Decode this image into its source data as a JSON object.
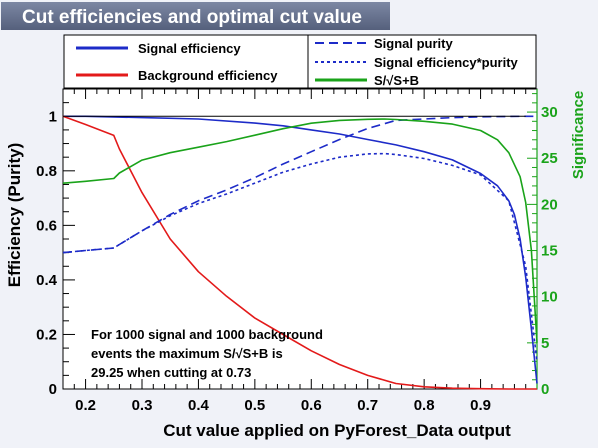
{
  "chart_data": {
    "type": "line",
    "title": "Cut efficiencies and optimal cut value",
    "xlabel": "Cut value applied on PyForest_Data output",
    "ylabel": "Efficiency (Purity)",
    "y2label": "Significance",
    "xlim": [
      0.16,
      1.0
    ],
    "ylim": [
      0,
      1.1
    ],
    "y2lim": [
      0,
      32.5
    ],
    "xticks": [
      "0.2",
      "0.3",
      "0.4",
      "0.5",
      "0.6",
      "0.7",
      "0.8",
      "0.9"
    ],
    "yticks": [
      "0",
      "0.2",
      "0.4",
      "0.6",
      "0.8",
      "1"
    ],
    "y2ticks": [
      "0",
      "5",
      "10",
      "15",
      "20",
      "25",
      "30"
    ],
    "legend": [
      {
        "label": "Signal efficiency",
        "style": "solid",
        "color": "#1d2bc8"
      },
      {
        "label": "Background efficiency",
        "style": "solid",
        "color": "#e31a1a"
      },
      {
        "label": "Signal purity",
        "style": "dashed",
        "color": "#1d2bc8"
      },
      {
        "label": "Signal efficiency*purity",
        "style": "dotted",
        "color": "#1d2bc8"
      },
      {
        "label": "S/√S+B",
        "style": "solid",
        "color": "#1aa31a"
      }
    ],
    "annotation": [
      "For 1000 signal and 1000 background",
      "events the maximum S/√S+B is",
      "29.25 when cutting at  0.73"
    ],
    "series": [
      {
        "name": "Signal efficiency",
        "axis": "left",
        "color": "#1d2bc8",
        "style": "solid",
        "x": [
          0.16,
          0.2,
          0.3,
          0.4,
          0.5,
          0.55,
          0.6,
          0.65,
          0.7,
          0.75,
          0.8,
          0.85,
          0.9,
          0.93,
          0.95,
          0.96,
          0.97,
          0.98,
          0.99,
          0.995,
          1.0
        ],
        "y": [
          1.0,
          1.0,
          0.995,
          0.99,
          0.975,
          0.965,
          0.95,
          0.935,
          0.915,
          0.895,
          0.87,
          0.84,
          0.79,
          0.745,
          0.69,
          0.64,
          0.55,
          0.41,
          0.22,
          0.12,
          0.02
        ]
      },
      {
        "name": "Background efficiency",
        "axis": "left",
        "color": "#e31a1a",
        "style": "solid",
        "x": [
          0.16,
          0.2,
          0.25,
          0.26,
          0.3,
          0.35,
          0.4,
          0.45,
          0.5,
          0.55,
          0.6,
          0.65,
          0.7,
          0.75,
          0.8,
          0.85,
          0.9,
          0.95,
          1.0
        ],
        "y": [
          1.0,
          0.97,
          0.93,
          0.88,
          0.72,
          0.55,
          0.43,
          0.34,
          0.26,
          0.2,
          0.14,
          0.09,
          0.05,
          0.02,
          0.008,
          0.003,
          0.001,
          0.0,
          0.0
        ]
      },
      {
        "name": "Signal purity",
        "axis": "left",
        "color": "#1d2bc8",
        "style": "dashed",
        "x": [
          0.16,
          0.2,
          0.25,
          0.26,
          0.3,
          0.35,
          0.4,
          0.45,
          0.5,
          0.55,
          0.6,
          0.65,
          0.7,
          0.75,
          0.8,
          0.85,
          0.9,
          0.95,
          0.98,
          1.0
        ],
        "y": [
          0.5,
          0.508,
          0.517,
          0.53,
          0.58,
          0.64,
          0.69,
          0.73,
          0.775,
          0.825,
          0.87,
          0.915,
          0.955,
          0.985,
          0.99,
          0.995,
          0.998,
          0.999,
          1.0,
          1.0
        ]
      },
      {
        "name": "Signal efficiency*purity",
        "axis": "left",
        "color": "#1d2bc8",
        "style": "dotted",
        "x": [
          0.16,
          0.2,
          0.25,
          0.26,
          0.3,
          0.35,
          0.4,
          0.45,
          0.5,
          0.55,
          0.6,
          0.65,
          0.7,
          0.73,
          0.75,
          0.8,
          0.85,
          0.9,
          0.95,
          0.98,
          1.0
        ],
        "y": [
          0.5,
          0.508,
          0.517,
          0.53,
          0.58,
          0.635,
          0.68,
          0.715,
          0.755,
          0.795,
          0.825,
          0.85,
          0.862,
          0.863,
          0.86,
          0.845,
          0.82,
          0.785,
          0.69,
          0.45,
          0.1
        ]
      },
      {
        "name": "S/√S+B",
        "axis": "right",
        "color": "#1aa31a",
        "style": "solid",
        "x": [
          0.16,
          0.2,
          0.25,
          0.26,
          0.3,
          0.35,
          0.4,
          0.45,
          0.5,
          0.55,
          0.6,
          0.65,
          0.7,
          0.73,
          0.75,
          0.8,
          0.85,
          0.9,
          0.93,
          0.95,
          0.97,
          0.98,
          0.99,
          1.0
        ],
        "y": [
          22.3,
          22.5,
          22.8,
          23.4,
          24.8,
          25.6,
          26.2,
          26.8,
          27.5,
          28.2,
          28.8,
          29.1,
          29.22,
          29.25,
          29.2,
          29.0,
          28.7,
          28.0,
          27.0,
          25.6,
          23.0,
          20.2,
          15.0,
          5.0
        ]
      }
    ]
  }
}
